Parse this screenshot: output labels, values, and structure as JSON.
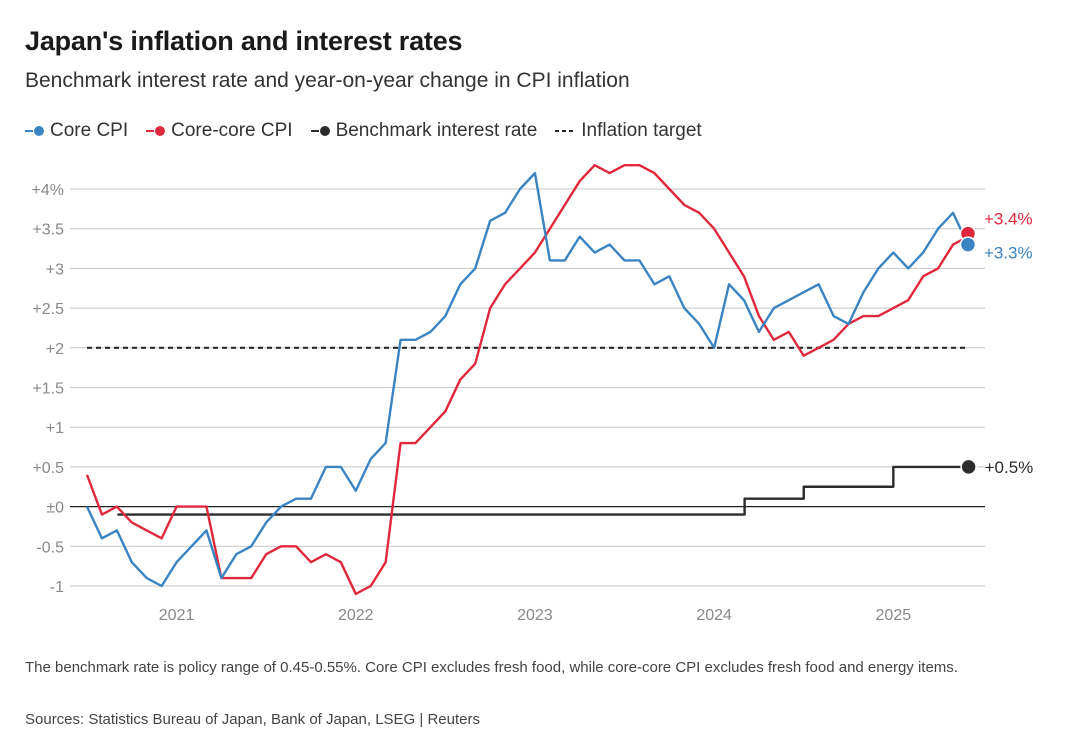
{
  "title": "Japan's inflation and interest rates",
  "subtitle": "Benchmark interest rate and year-on-year change in CPI inflation",
  "legend": [
    {
      "label": "Core CPI",
      "color": "#3a84c1",
      "marker": "dot"
    },
    {
      "label": "Core-core CPI",
      "color": "#e0283c",
      "marker": "dot"
    },
    {
      "label": "Benchmark interest rate",
      "color": "#2b2b2b",
      "marker": "dot"
    },
    {
      "label": "Inflation target",
      "color": "#2b2b2b",
      "marker": "dash"
    }
  ],
  "note": "The benchmark rate is policy range of 0.45-0.55%. Core CPI excludes fresh food, while core-core CPI excludes fresh food and energy items.",
  "source": "Sources: Statistics Bureau of Japan, Bank of Japan, LSEG | Reuters",
  "chart_data": {
    "type": "line",
    "title": "Japan's inflation and interest rates",
    "xlabel": "",
    "ylabel": "",
    "xlim": [
      2020.5,
      2025.5
    ],
    "ylim": [
      -1,
      4
    ],
    "y_ticks": [
      {
        "value": 4,
        "label": "+4%"
      },
      {
        "value": 3.5,
        "label": "+3.5"
      },
      {
        "value": 3,
        "label": "+3"
      },
      {
        "value": 2.5,
        "label": "+2.5"
      },
      {
        "value": 2,
        "label": "+2"
      },
      {
        "value": 1.5,
        "label": "+1.5"
      },
      {
        "value": 1,
        "label": "+1"
      },
      {
        "value": 0.5,
        "label": "+0.5"
      },
      {
        "value": 0,
        "label": "±0"
      },
      {
        "value": -0.5,
        "label": "-0.5"
      },
      {
        "value": -1,
        "label": "-1"
      }
    ],
    "x_ticks": [
      {
        "value": 2021,
        "label": "2021"
      },
      {
        "value": 2022,
        "label": "2022"
      },
      {
        "value": 2023,
        "label": "2023"
      },
      {
        "value": 2024,
        "label": "2024"
      },
      {
        "value": 2025,
        "label": "2025"
      }
    ],
    "series": [
      {
        "name": "Core CPI",
        "color": "#3a84c1",
        "end_label": "+3.3%",
        "start": 2020.5,
        "step": 0.08333,
        "values": [
          0.0,
          -0.4,
          -0.3,
          -0.7,
          -0.9,
          -1.0,
          -0.7,
          -0.5,
          -0.3,
          -0.9,
          -0.6,
          -0.5,
          -0.2,
          0.0,
          0.1,
          0.1,
          0.5,
          0.5,
          0.2,
          0.6,
          0.8,
          2.1,
          2.1,
          2.2,
          2.4,
          2.8,
          3.0,
          3.6,
          3.7,
          4.0,
          4.2,
          3.1,
          3.1,
          3.4,
          3.2,
          3.3,
          3.1,
          3.1,
          2.8,
          2.9,
          2.5,
          2.3,
          2.0,
          2.8,
          2.6,
          2.2,
          2.5,
          2.6,
          2.7,
          2.8,
          2.4,
          2.3,
          2.7,
          3.0,
          3.2,
          3.0,
          3.2,
          3.5,
          3.7,
          3.3
        ]
      },
      {
        "name": "Core-core CPI",
        "color": "#e0283c",
        "end_label": "+3.4%",
        "start": 2020.5,
        "step": 0.08333,
        "values": [
          0.4,
          -0.1,
          0.0,
          -0.2,
          -0.3,
          -0.4,
          0.0,
          0.0,
          0.0,
          -0.9,
          -0.9,
          -0.9,
          -0.6,
          -0.5,
          -0.5,
          -0.7,
          -0.6,
          -0.7,
          -1.1,
          -1.0,
          -0.7,
          0.8,
          0.8,
          1.0,
          1.2,
          1.6,
          1.8,
          2.5,
          2.8,
          3.0,
          3.2,
          3.5,
          3.8,
          4.1,
          4.3,
          4.2,
          4.3,
          4.3,
          4.2,
          4.0,
          3.8,
          3.7,
          3.5,
          3.2,
          2.9,
          2.4,
          2.1,
          2.2,
          1.9,
          2.0,
          2.1,
          2.3,
          2.4,
          2.4,
          2.5,
          2.6,
          2.9,
          3.0,
          3.3,
          3.4
        ]
      },
      {
        "name": "Benchmark interest rate",
        "color": "#2b2b2b",
        "end_label": "+0.5%",
        "step_line": true,
        "points": [
          {
            "x": 2020.67,
            "y": -0.1
          },
          {
            "x": 2024.17,
            "y": -0.1
          },
          {
            "x": 2024.17,
            "y": 0.1
          },
          {
            "x": 2024.5,
            "y": 0.1
          },
          {
            "x": 2024.5,
            "y": 0.25
          },
          {
            "x": 2025.0,
            "y": 0.25
          },
          {
            "x": 2025.0,
            "y": 0.5
          },
          {
            "x": 2025.42,
            "y": 0.5
          }
        ]
      },
      {
        "name": "Inflation target",
        "color": "#2b2b2b",
        "dashed": true,
        "points": [
          {
            "x": 2020.5,
            "y": 2
          },
          {
            "x": 2025.42,
            "y": 2
          }
        ]
      }
    ]
  }
}
